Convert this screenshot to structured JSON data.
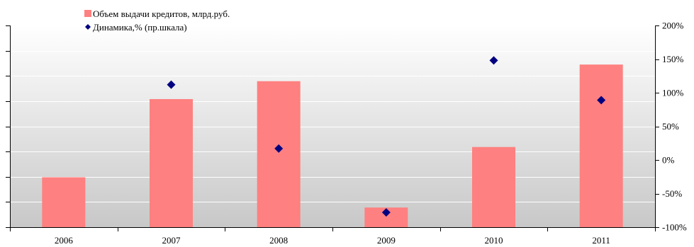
{
  "chart_data": {
    "type": "bar",
    "categories": [
      "2006",
      "2007",
      "2008",
      "2009",
      "2010",
      "2011"
    ],
    "series": [
      {
        "name": "Объем выдачи кредитов, млрд.руб.",
        "kind": "bar",
        "axis": "left",
        "color": "#ff8080",
        "values": [
          1.98,
          5.08,
          5.79,
          0.78,
          3.18,
          6.45
        ]
      },
      {
        "name": "Динамика,% (пр.шкала)",
        "kind": "scatter",
        "marker": "diamond",
        "axis": "right",
        "color": "#000080",
        "values": [
          null,
          112,
          17,
          -78,
          148,
          89
        ]
      }
    ],
    "left_axis": {
      "ylim": [
        0,
        8
      ],
      "ticks": [
        0,
        1,
        2,
        3,
        4,
        5,
        6,
        7,
        8
      ],
      "labels_shown": false
    },
    "right_axis": {
      "ylim": [
        -100,
        200
      ],
      "ticks": [
        -100,
        -50,
        0,
        50,
        100,
        150,
        200
      ],
      "tick_labels": [
        "-100%",
        "-50%",
        "0%",
        "50%",
        "100%",
        "150%",
        "200%"
      ]
    },
    "gridlines": true,
    "background": "gradient-white-to-gray",
    "legend_position": "top-left"
  }
}
